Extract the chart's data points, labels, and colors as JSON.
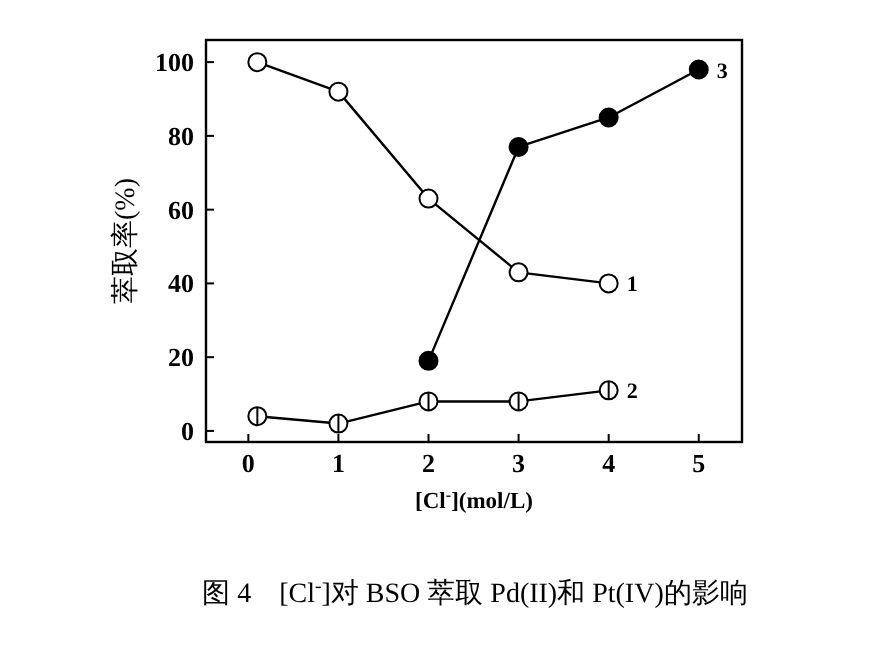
{
  "chart_data": {
    "type": "line",
    "title": "图 4　[Cl$^{-}$]对 BSO 萃取 Pd(II)和 Pt(IV)的影响",
    "xlabel": "[Cl$^{-}$](mol/L)",
    "ylabel": "萃取率(%)",
    "xlim": [
      -0.47,
      5.48
    ],
    "ylim": [
      -3,
      106
    ],
    "xticks": [
      0,
      1,
      2,
      3,
      4,
      5
    ],
    "yticks": [
      0,
      20,
      40,
      60,
      80,
      100
    ],
    "marker": "circle",
    "line_style": "solid",
    "grid": false,
    "series": [
      {
        "name": "1",
        "color": "#000000",
        "x": [
          0.1,
          1,
          2,
          3,
          4
        ],
        "values": [
          100,
          92,
          63,
          43,
          40
        ]
      },
      {
        "name": "2",
        "color": "#000000",
        "x": [
          0.1,
          1,
          2,
          3,
          4
        ],
        "values": [
          4,
          2,
          8,
          8,
          11
        ]
      },
      {
        "name": "3",
        "color": "#000000",
        "x": [
          2,
          3,
          4,
          5
        ],
        "values": [
          19,
          77,
          85,
          98
        ]
      }
    ]
  }
}
